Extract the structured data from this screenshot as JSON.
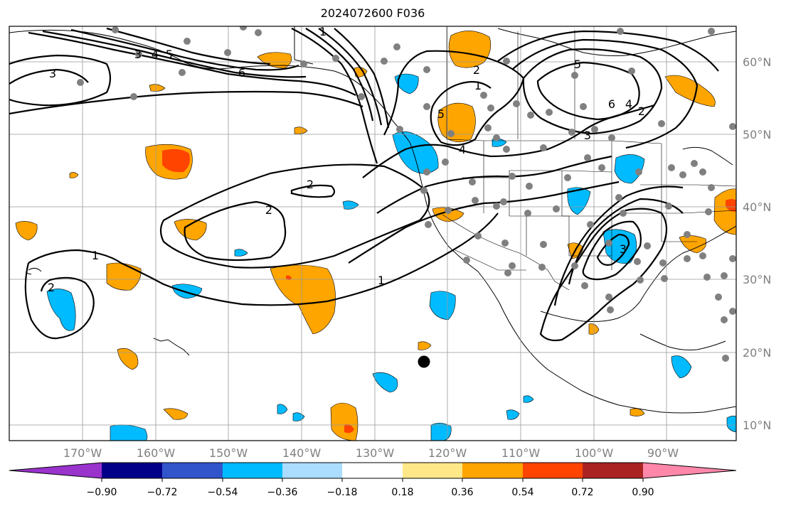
{
  "title": "2024072600 F036",
  "map": {
    "lon_labels": [
      "170°W",
      "160°W",
      "150°W",
      "140°W",
      "130°W",
      "120°W",
      "110°W",
      "100°W",
      "90°W"
    ],
    "lat_labels": [
      "60°N",
      "50°N",
      "40°N",
      "30°N",
      "20°N",
      "10°N"
    ],
    "contour_labels": [
      "3",
      "5",
      "3",
      "4",
      "6",
      "1",
      "2",
      "5",
      "4",
      "2",
      "2",
      "1",
      "1",
      "1",
      "2",
      "6",
      "4",
      "3",
      "2",
      "3",
      "5"
    ]
  },
  "colorbar": {
    "tick_labels": [
      "−0.90",
      "−0.72",
      "−0.54",
      "−0.36",
      "−0.18",
      "0.18",
      "0.36",
      "0.54",
      "0.72",
      "0.90"
    ],
    "colors": [
      "#9933cc",
      "#000088",
      "#3355cc",
      "#00bbff",
      "#aaddff",
      "#ffffff",
      "#ffe888",
      "#ffa500",
      "#ff4400",
      "#aa2222",
      "#ff88aa"
    ]
  }
}
